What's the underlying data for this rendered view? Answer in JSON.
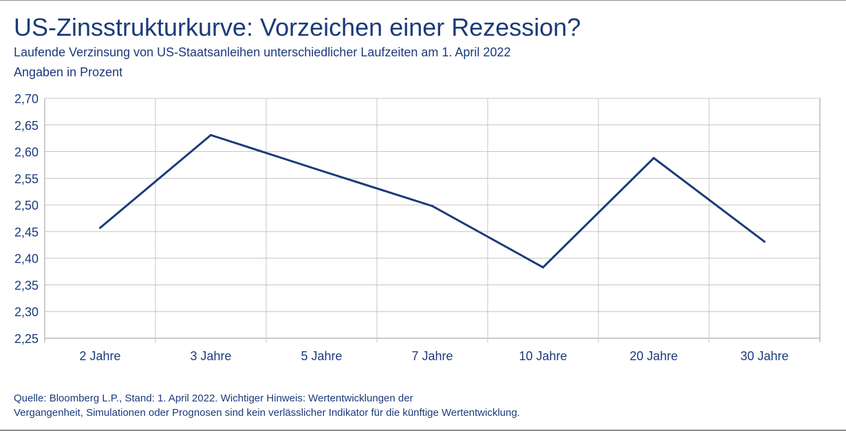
{
  "chart_data": {
    "type": "line",
    "title": "US-Zinsstrukturkurve: Vorzeichen einer Rezession?",
    "subtitle": "Laufende Verzinsung von US-Staatsanleihen unterschiedlicher Laufzeiten am 1. April 2022",
    "unit_label": "Angaben in Prozent",
    "categories": [
      "2 Jahre",
      "3 Jahre",
      "5 Jahre",
      "7 Jahre",
      "10 Jahre",
      "20 Jahre",
      "30 Jahre"
    ],
    "series": [
      {
        "values": [
          2.457,
          2.631,
          2.564,
          2.498,
          2.383,
          2.588,
          2.431
        ]
      }
    ],
    "ylim": [
      2.25,
      2.7
    ],
    "yticks": [
      "2,25",
      "2,30",
      "2,35",
      "2,40",
      "2,45",
      "2,50",
      "2,55",
      "2,60",
      "2,65",
      "2,70"
    ],
    "grid": true,
    "legend": "none",
    "line_color": "#1b3a7a",
    "grid_color": "#c4c4c4",
    "axis_color": "#9a9a9a"
  },
  "footer": {
    "source_line1": "Quelle: Bloomberg L.P., Stand: 1. April 2022. Wichtiger Hinweis: Wertentwicklungen der",
    "source_line2": "Vergangenheit, Simulationen oder Prognosen sind kein verlässlicher Indikator für die künftige Wertentwicklung."
  }
}
